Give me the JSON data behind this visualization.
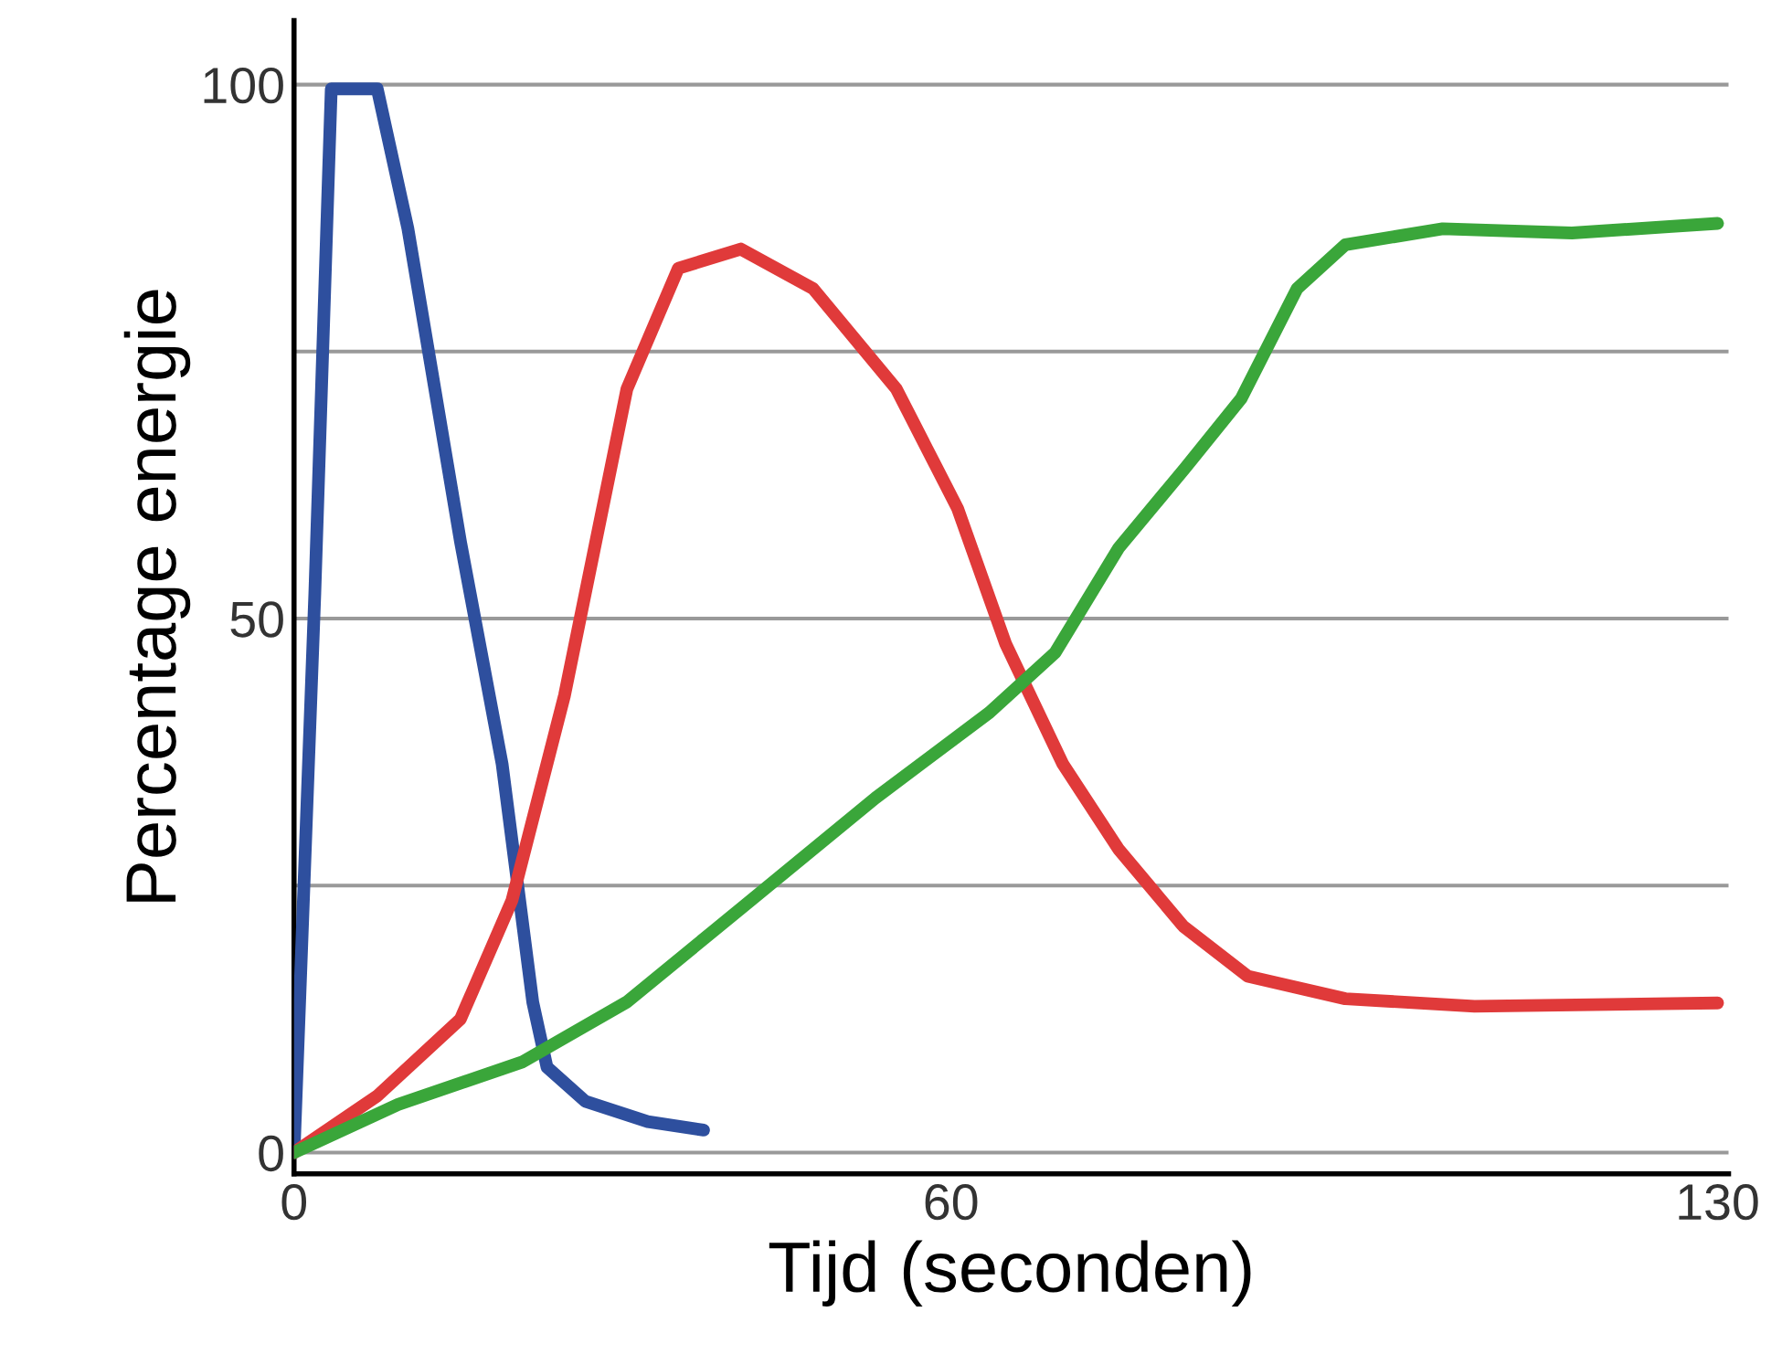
{
  "chart_data": {
    "type": "line",
    "xlabel": "Tijd (seconden)",
    "ylabel": "Percentage energie",
    "xlim": [
      0,
      131
    ],
    "ylim": [
      -2,
      106
    ],
    "xticks": [
      0,
      60,
      130
    ],
    "yticks": [
      0,
      {
        "value": 25,
        "label": null
      },
      50,
      {
        "value": 75,
        "label": null
      },
      100
    ],
    "grid": "y",
    "marker": "none",
    "line_style": "solid",
    "series": [
      {
        "color": "#2e4f9e",
        "x": [
          0,
          1.9,
          3.4,
          7.6,
          10.4,
          15.2,
          19,
          21.8,
          23.1,
          26.6,
          32.3,
          37.4
        ],
        "values": [
          0,
          52.4,
          99.6,
          99.6,
          86.5,
          57.2,
          36.4,
          14.1,
          8,
          4.8,
          2.9,
          2.1
        ]
      },
      {
        "color": "#e03a3a",
        "x": [
          0,
          7.6,
          15.2,
          19.9,
          24.7,
          30.4,
          35.1,
          40.8,
          47.4,
          55,
          60.6,
          65,
          70.2,
          75.3,
          81.2,
          87.1,
          96,
          107.8,
          130
        ],
        "values": [
          0,
          5.3,
          12.5,
          23.6,
          42.8,
          71.5,
          82.8,
          84.6,
          80.9,
          71.5,
          60.3,
          47.6,
          36.4,
          28.4,
          21.2,
          16.5,
          14.4,
          13.7,
          14
        ]
      },
      {
        "color": "#3aa63a",
        "x": [
          0,
          9.5,
          20.9,
          30.4,
          41.7,
          53.1,
          63.5,
          69.5,
          75.3,
          81.3,
          86.5,
          91.6,
          96,
          104.9,
          116.7,
          130
        ],
        "values": [
          0,
          4.5,
          8.5,
          14.1,
          23.6,
          33.2,
          41.2,
          46.8,
          56.6,
          64,
          70.6,
          80.9,
          85,
          86.5,
          86.1,
          87
        ]
      }
    ]
  }
}
